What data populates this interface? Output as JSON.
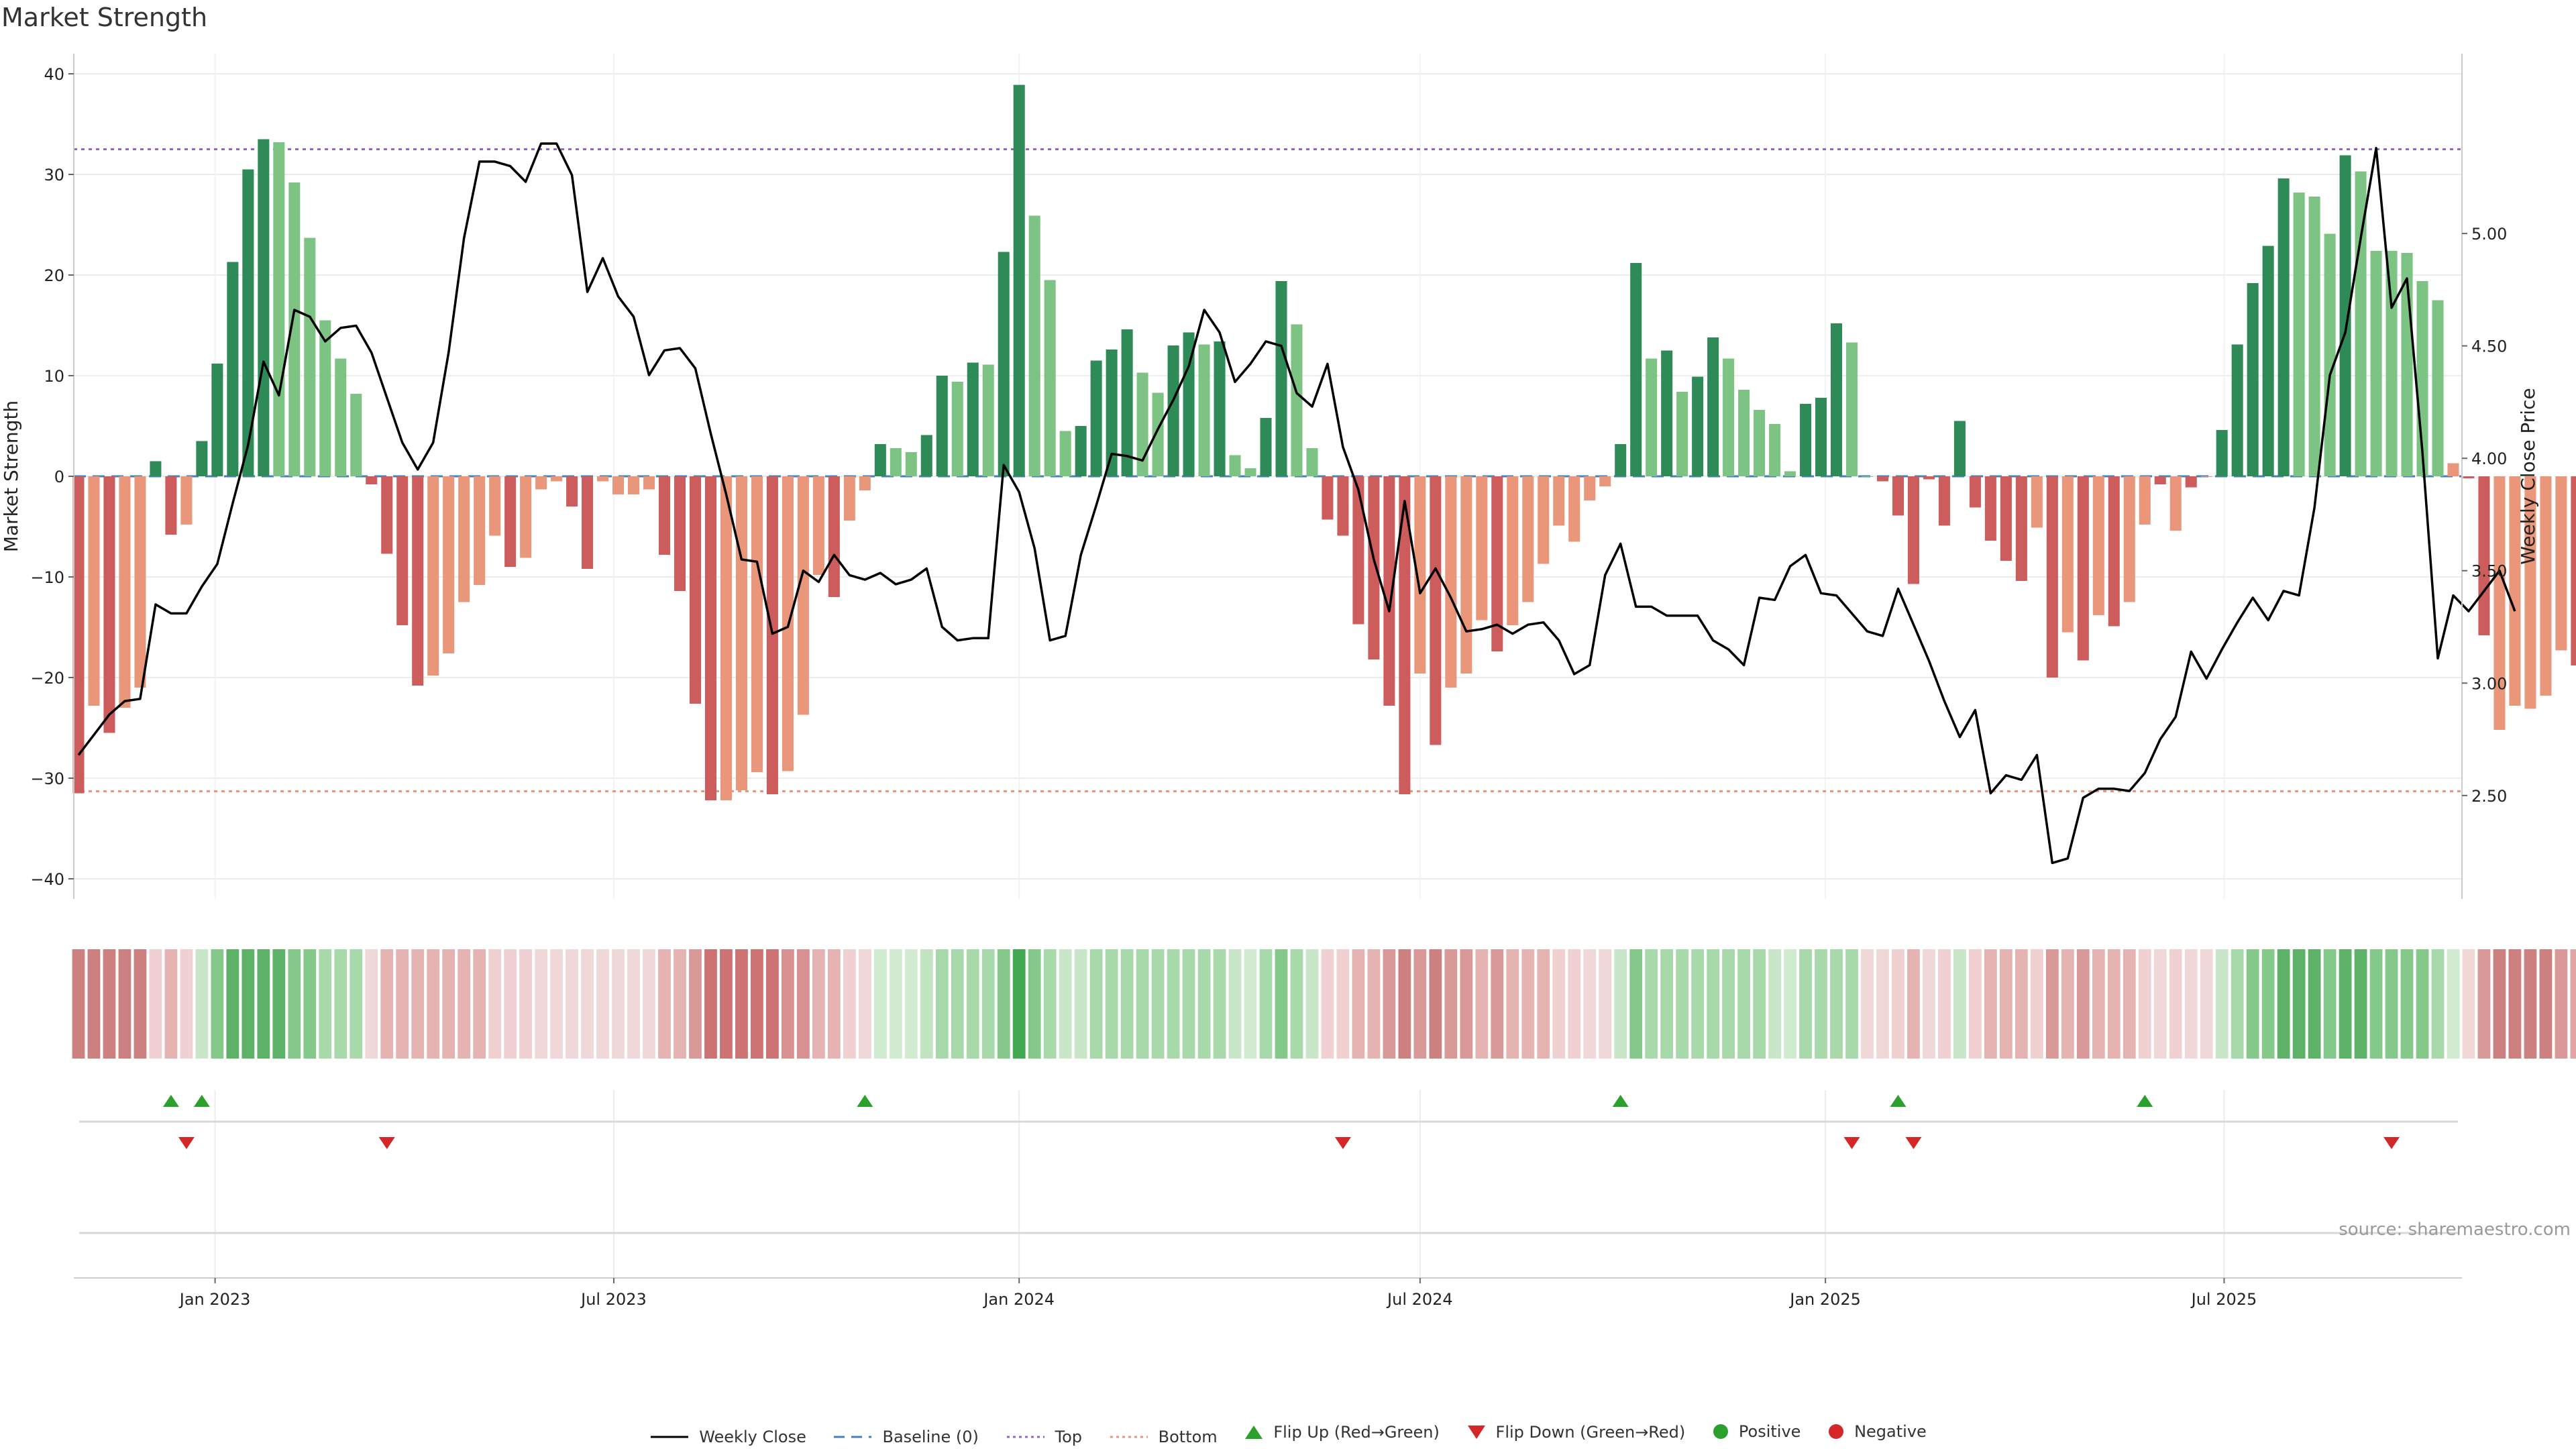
{
  "title": "Market Strength",
  "source_text": "source: sharemaestro.com",
  "colors": {
    "strong_green": "#2e8b57",
    "light_green": "#7dc383",
    "strong_red": "#cd5c5c",
    "light_red": "#e9967a",
    "price_line": "#000000",
    "baseline": "#4682b4",
    "top_line": "#9467bd",
    "bottom_line": "#e9967a",
    "flip_up": "#2ca02c",
    "flip_down": "#d62728"
  },
  "legend": {
    "weekly_close": "Weekly Close",
    "baseline": "Baseline (0)",
    "top": "Top",
    "bottom": "Bottom",
    "flip_up": "Flip Up (Red→Green)",
    "flip_down": "Flip Down (Green→Red)",
    "positive": "Positive",
    "negative": "Negative"
  },
  "chart_data": {
    "type": "bar",
    "ylabel": "Market Strength",
    "y2label": "Weekly Close Price",
    "ylim": [
      -42,
      42
    ],
    "y2lim": [
      2.04,
      5.8
    ],
    "yticks": [
      40,
      30,
      20,
      10,
      0,
      -10,
      -20,
      -30,
      -40
    ],
    "y2ticks": [
      "5.00",
      "4.50",
      "4.00",
      "3.50",
      "3.00",
      "2.50"
    ],
    "x_start": "2022-10-31",
    "x_end": "2025-10-13",
    "x_ticks": [
      {
        "label": "Jan 2023",
        "date": "2023-01-01"
      },
      {
        "label": "Jul 2023",
        "date": "2023-07-01"
      },
      {
        "label": "Jan 2024",
        "date": "2024-01-01"
      },
      {
        "label": "Jul 2024",
        "date": "2024-07-01"
      },
      {
        "label": "Jan 2025",
        "date": "2025-01-01"
      },
      {
        "label": "Jul 2025",
        "date": "2025-07-01"
      }
    ],
    "top_level": 32.5,
    "bottom_level": -31.3,
    "strength": [
      -31.5,
      -22.8,
      -25.5,
      -23,
      -21,
      1.5,
      -5.8,
      -4.8,
      3.5,
      11.2,
      21.3,
      30.5,
      33.5,
      33.2,
      29.2,
      23.7,
      15.5,
      11.7,
      8.2,
      -0.8,
      -7.7,
      -14.8,
      -20.8,
      -19.8,
      -17.6,
      -12.5,
      -10.8,
      -5.9,
      -9,
      -8.1,
      -1.3,
      -0.5,
      -3,
      -9.2,
      -0.5,
      -1.8,
      -1.8,
      -1.3,
      -7.8,
      -11.4,
      -22.6,
      -32.2,
      -32.2,
      -31.2,
      -29.4,
      -31.6,
      -29.3,
      -23.7,
      -9.8,
      -12,
      -4.4,
      -1.4,
      3.2,
      2.8,
      2.4,
      4.1,
      10,
      9.4,
      11.3,
      11.1,
      22.3,
      38.9,
      25.9,
      19.5,
      4.5,
      5,
      11.5,
      12.6,
      14.6,
      10.3,
      8.3,
      13,
      14.3,
      13.1,
      13.4,
      2.1,
      0.8,
      5.8,
      19.4,
      15.1,
      2.8,
      -4.3,
      -5.9,
      -14.7,
      -18.2,
      -22.8,
      -31.6,
      -19.6,
      -26.7,
      -21,
      -19.6,
      -14.3,
      -17.4,
      -14.8,
      -12.5,
      -8.7,
      -4.9,
      -6.5,
      -2.4,
      -1,
      3.2,
      21.2,
      11.7,
      12.5,
      8.4,
      9.9,
      13.8,
      11.7,
      8.6,
      6.6,
      5.2,
      0.5,
      7.2,
      7.8,
      15.2,
      13.3,
      0,
      -0.5,
      -3.9,
      -10.7,
      -0.3,
      -4.9,
      5.5,
      -3.1,
      -6.4,
      -8.4,
      -10.4,
      -5.1,
      -20,
      -15.5,
      -18.3,
      -13.8,
      -14.9,
      -12.5,
      -4.8,
      -0.8,
      -5.4,
      -1.1,
      0,
      4.6,
      13.1,
      19.2,
      22.9,
      29.6,
      28.2,
      27.8,
      24.1,
      31.9,
      30.3,
      22.4,
      22.4,
      22.2,
      19.4,
      17.5,
      1.3,
      -0.2,
      -15.8,
      -25.2,
      -22.8,
      -23.1,
      -21.8,
      -17.3,
      -18.8
    ],
    "bar_shade": [
      "R",
      "r",
      "R",
      "r",
      "r",
      "G",
      "R",
      "r",
      "G",
      "G",
      "G",
      "G",
      "G",
      "g",
      "g",
      "g",
      "g",
      "g",
      "g",
      "R",
      "R",
      "R",
      "R",
      "r",
      "r",
      "r",
      "r",
      "r",
      "R",
      "r",
      "r",
      "r",
      "R",
      "R",
      "r",
      "r",
      "r",
      "r",
      "R",
      "R",
      "R",
      "R",
      "r",
      "r",
      "r",
      "R",
      "r",
      "r",
      "r",
      "R",
      "r",
      "r",
      "G",
      "g",
      "g",
      "G",
      "G",
      "g",
      "G",
      "g",
      "G",
      "G",
      "g",
      "g",
      "g",
      "G",
      "G",
      "G",
      "G",
      "g",
      "g",
      "G",
      "G",
      "g",
      "G",
      "g",
      "g",
      "G",
      "G",
      "g",
      "g",
      "R",
      "R",
      "R",
      "R",
      "R",
      "R",
      "r",
      "R",
      "r",
      "r",
      "r",
      "R",
      "r",
      "r",
      "r",
      "r",
      "r",
      "r",
      "r",
      "G",
      "G",
      "g",
      "G",
      "g",
      "G",
      "G",
      "g",
      "g",
      "g",
      "g",
      "g",
      "G",
      "G",
      "G",
      "g",
      "g",
      "R",
      "R",
      "R",
      "R",
      "R",
      "G",
      "R",
      "R",
      "R",
      "R",
      "r",
      "R",
      "r",
      "R",
      "r",
      "R",
      "r",
      "r",
      "R",
      "r",
      "R",
      "r",
      "G",
      "G",
      "G",
      "G",
      "G",
      "g",
      "g",
      "g",
      "G",
      "g",
      "g",
      "g",
      "g",
      "g",
      "g",
      "r",
      "R",
      "R",
      "r",
      "r",
      "r",
      "r",
      "r",
      "R"
    ],
    "price": [
      2.68,
      2.77,
      2.86,
      2.92,
      2.93,
      3.35,
      3.31,
      3.31,
      3.43,
      3.53,
      3.8,
      4.06,
      4.43,
      4.28,
      4.66,
      4.63,
      4.52,
      4.58,
      4.59,
      4.47,
      4.27,
      4.07,
      3.95,
      4.07,
      4.47,
      4.98,
      5.32,
      5.32,
      5.3,
      5.23,
      5.4,
      5.4,
      5.26,
      4.74,
      4.89,
      4.72,
      4.63,
      4.37,
      4.48,
      4.49,
      4.4,
      4.11,
      3.84,
      3.55,
      3.54,
      3.22,
      3.25,
      3.5,
      3.45,
      3.57,
      3.48,
      3.46,
      3.49,
      3.44,
      3.46,
      3.51,
      3.25,
      3.19,
      3.2,
      3.2,
      3.97,
      3.85,
      3.6,
      3.19,
      3.21,
      3.57,
      3.79,
      4.02,
      4.01,
      3.99,
      4.13,
      4.26,
      4.41,
      4.66,
      4.56,
      4.34,
      4.42,
      4.52,
      4.5,
      4.29,
      4.23,
      4.42,
      4.05,
      3.86,
      3.55,
      3.32,
      3.81,
      3.4,
      3.51,
      3.38,
      3.23,
      3.24,
      3.26,
      3.22,
      3.26,
      3.27,
      3.19,
      3.04,
      3.08,
      3.48,
      3.62,
      3.34,
      3.34,
      3.3,
      3.3,
      3.3,
      3.19,
      3.15,
      3.08,
      3.38,
      3.37,
      3.52,
      3.57,
      3.4,
      3.39,
      3.31,
      3.23,
      3.21,
      3.42,
      3.26,
      3.1,
      2.92,
      2.76,
      2.88,
      2.51,
      2.59,
      2.57,
      2.68,
      2.2,
      2.22,
      2.49,
      2.53,
      2.53,
      2.52,
      2.6,
      2.75,
      2.85,
      3.14,
      3.02,
      3.15,
      3.27,
      3.38,
      3.28,
      3.41,
      3.39,
      3.78,
      4.37,
      4.56,
      4.98,
      5.38,
      4.67,
      4.8,
      4.03,
      3.11,
      3.39,
      3.32,
      3.41,
      3.5,
      3.32
    ],
    "heat_colors": [
      "#cd8080",
      "#cd8080",
      "#cd8080",
      "#cd8080",
      "#cd8080",
      "#f0d0d0",
      "#e6b3b3",
      "#f0d0d0",
      "#c9e6c8",
      "#84c98a",
      "#5eb267",
      "#5eb267",
      "#5eb267",
      "#5eb267",
      "#84c98a",
      "#84c98a",
      "#a8d9ab",
      "#a8d9ab",
      "#a8d9ab",
      "#f0d8d8",
      "#e6b3b3",
      "#e6b3b3",
      "#e6b3b3",
      "#e6b3b3",
      "#e6b3b3",
      "#e6b3b3",
      "#e6b3b3",
      "#f0d0d0",
      "#f0d0d0",
      "#f0d0d0",
      "#f0d8d8",
      "#f0d8d8",
      "#f0d8d8",
      "#f0d8d8",
      "#f0d8d8",
      "#f0d8d8",
      "#f0d8d8",
      "#f0d8d8",
      "#e6b3b3",
      "#e6b3b3",
      "#d99999",
      "#cd7373",
      "#cd7373",
      "#cd7373",
      "#cd7373",
      "#cd7373",
      "#d99090",
      "#d99090",
      "#e6b3b3",
      "#e6b3b3",
      "#f0d0d0",
      "#f0d8d8",
      "#d0ebd0",
      "#d0ebd0",
      "#d0ebd0",
      "#c2e4c2",
      "#a8d9ab",
      "#a8d9ab",
      "#a8d9ab",
      "#a8d9ab",
      "#84c98a",
      "#42a852",
      "#84c98a",
      "#a8d9ab",
      "#c9e6c8",
      "#c9e6c8",
      "#a8d9ab",
      "#a8d9ab",
      "#a8d9ab",
      "#a8d9ab",
      "#a8d9ab",
      "#a8d9ab",
      "#a8d9ab",
      "#a8d9ab",
      "#a8d9ab",
      "#c9e6c8",
      "#d0ebd0",
      "#a8d9ab",
      "#84c98a",
      "#a8d9ab",
      "#c9e6c8",
      "#f0d0d0",
      "#f0d0d0",
      "#e6b3b3",
      "#e6b3b3",
      "#d99999",
      "#cd8080",
      "#d99999",
      "#cd8080",
      "#d99999",
      "#d99999",
      "#e6b3b3",
      "#d99999",
      "#e6b3b3",
      "#e6b3b3",
      "#e6b3b3",
      "#f0d0d0",
      "#f0d0d0",
      "#f0d8d8",
      "#f0d8d8",
      "#c9e6c8",
      "#84c98a",
      "#a8d9ab",
      "#a8d9ab",
      "#a8d9ab",
      "#a8d9ab",
      "#a8d9ab",
      "#a8d9ab",
      "#a8d9ab",
      "#a8d9ab",
      "#c9e6c8",
      "#d0ebd0",
      "#a8d9ab",
      "#a8d9ab",
      "#a8d9ab",
      "#a8d9ab",
      "#f0d8d8",
      "#f0d8d8",
      "#f0d0d0",
      "#e6b3b3",
      "#f0d8d8",
      "#f0d0d0",
      "#c9e6c8",
      "#f0d0d0",
      "#e6b3b3",
      "#e6b3b3",
      "#e6b3b3",
      "#f0d0d0",
      "#d99999",
      "#e6b3b3",
      "#d99999",
      "#e6b3b3",
      "#e6b3b3",
      "#e6b3b3",
      "#f0d0d0",
      "#f0d8d8",
      "#f0d0d0",
      "#f0d8d8",
      "#f0d8d8",
      "#c9e6c8",
      "#a8d9ab",
      "#84c98a",
      "#84c98a",
      "#5eb267",
      "#5eb267",
      "#5eb267",
      "#84c98a",
      "#5eb267",
      "#5eb267",
      "#84c98a",
      "#84c98a",
      "#84c98a",
      "#84c98a",
      "#a8d9ab",
      "#d0ebd0",
      "#f0d8d8",
      "#d99999",
      "#cd8080",
      "#cd8080",
      "#cd8080",
      "#cd8080",
      "#d99999",
      "#e0a6a6"
    ],
    "flip_up_dates": [
      "2022-12-12",
      "2022-12-26",
      "2023-10-23",
      "2024-09-30",
      "2025-02-03",
      "2025-05-26"
    ],
    "flip_down_dates": [
      "2022-12-19",
      "2023-03-20",
      "2024-05-27",
      "2025-01-13",
      "2025-02-10",
      "2025-09-15"
    ]
  }
}
